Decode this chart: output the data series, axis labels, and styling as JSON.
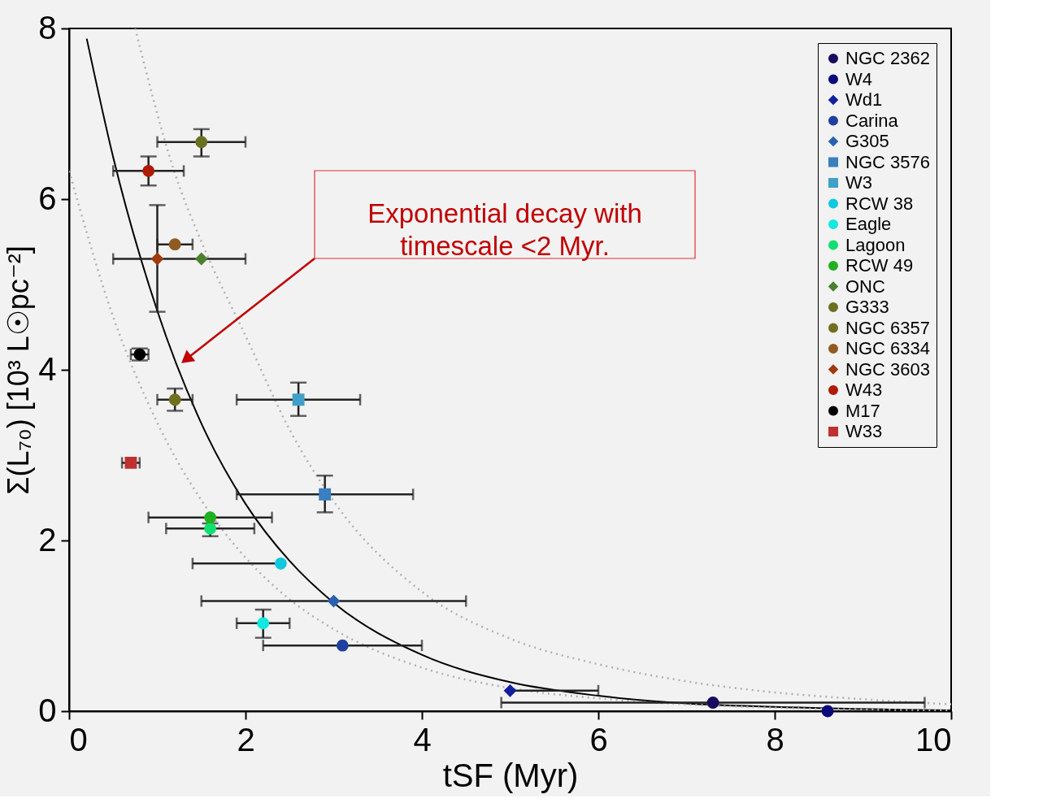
{
  "chart_data": {
    "type": "scatter",
    "xlabel": "tSF (Myr)",
    "ylabel": "Σ(L₇₀) [10³ L☉pc⁻²]",
    "xlim": [
      0,
      10
    ],
    "xticks": [
      0,
      2,
      4,
      6,
      8,
      10
    ],
    "ylim": [
      0,
      8
    ],
    "yticks": [
      0,
      2,
      4,
      6,
      8
    ],
    "grid": false,
    "legend": "top right",
    "annotations": [
      "Exponential decay with\ntimescale <2 Myr."
    ],
    "series": [
      {
        "name": "NGC 2362",
        "color": "#1a0a5e",
        "marker": "circle",
        "x": [
          7.3
        ],
        "values": [
          0.1
        ],
        "xerrors": [
          [
            4.9,
            9.7
          ]
        ],
        "errors": [
          null
        ]
      },
      {
        "name": "W4",
        "color": "#0a0a7a",
        "marker": "circle",
        "x": [
          8.6
        ],
        "values": [
          0.0
        ],
        "xerrors": [
          null
        ],
        "errors": [
          null
        ]
      },
      {
        "name": "Wd1",
        "color": "#1020a0",
        "marker": "diamond",
        "x": [
          5.0
        ],
        "values": [
          0.24
        ],
        "xerrors": [
          [
            5.0,
            6.0
          ]
        ],
        "errors": [
          null
        ]
      },
      {
        "name": "Carina",
        "color": "#2040a0",
        "marker": "circle",
        "x": [
          3.1
        ],
        "values": [
          0.77
        ],
        "xerrors": [
          [
            2.2,
            4.0
          ]
        ],
        "errors": [
          null
        ]
      },
      {
        "name": "G305",
        "color": "#2a60b0",
        "marker": "diamond",
        "x": [
          3.0
        ],
        "values": [
          1.29
        ],
        "xerrors": [
          [
            1.5,
            4.5
          ]
        ],
        "errors": [
          null
        ]
      },
      {
        "name": "NGC 3576",
        "color": "#3a80c0",
        "marker": "square",
        "x": [
          2.9
        ],
        "values": [
          2.54
        ],
        "xerrors": [
          [
            1.9,
            3.9
          ]
        ],
        "errors": [
          [
            2.33,
            2.76
          ]
        ]
      },
      {
        "name": "W3",
        "color": "#40a0c8",
        "marker": "square",
        "x": [
          2.6
        ],
        "values": [
          3.65
        ],
        "xerrors": [
          [
            1.9,
            3.3
          ]
        ],
        "errors": [
          [
            3.46,
            3.85
          ]
        ]
      },
      {
        "name": "RCW 38",
        "color": "#10c8e0",
        "marker": "circle",
        "x": [
          2.4
        ],
        "values": [
          1.73
        ],
        "xerrors": [
          [
            1.4,
            2.4
          ]
        ],
        "errors": [
          null
        ]
      },
      {
        "name": "Eagle",
        "color": "#10e8e0",
        "marker": "circle",
        "x": [
          2.2
        ],
        "values": [
          1.03
        ],
        "xerrors": [
          [
            1.9,
            2.5
          ]
        ],
        "errors": [
          [
            0.86,
            1.19
          ]
        ]
      },
      {
        "name": "Lagoon",
        "color": "#10e070",
        "marker": "circle",
        "x": [
          1.6
        ],
        "values": [
          2.14
        ],
        "xerrors": [
          [
            1.1,
            2.1
          ]
        ],
        "errors": [
          [
            2.05,
            2.2
          ]
        ]
      },
      {
        "name": "RCW 49",
        "color": "#20b020",
        "marker": "circle",
        "x": [
          1.6
        ],
        "values": [
          2.27
        ],
        "xerrors": [
          [
            0.9,
            2.3
          ]
        ],
        "errors": [
          null
        ]
      },
      {
        "name": "ONC",
        "color": "#4a8030",
        "marker": "diamond",
        "x": [
          1.5
        ],
        "values": [
          5.3
        ],
        "xerrors": [
          null
        ],
        "errors": [
          null
        ]
      },
      {
        "name": "G333",
        "color": "#6a7020",
        "marker": "circle",
        "x": [
          1.5
        ],
        "values": [
          6.67
        ],
        "xerrors": [
          [
            1.0,
            2.0
          ]
        ],
        "errors": [
          [
            6.5,
            6.82
          ]
        ]
      },
      {
        "name": "NGC 6357",
        "color": "#707020",
        "marker": "circle",
        "x": [
          1.2
        ],
        "values": [
          3.65
        ],
        "xerrors": [
          [
            1.0,
            1.4
          ]
        ],
        "errors": [
          [
            3.52,
            3.78
          ]
        ]
      },
      {
        "name": "NGC 6334",
        "color": "#905a20",
        "marker": "circle",
        "x": [
          1.2
        ],
        "values": [
          5.47
        ],
        "xerrors": [
          [
            1.0,
            1.4
          ]
        ],
        "errors": [
          null
        ]
      },
      {
        "name": "NGC 3603",
        "color": "#a03a10",
        "marker": "diamond",
        "x": [
          1.0
        ],
        "values": [
          5.3
        ],
        "xerrors": [
          [
            0.5,
            2.0
          ]
        ],
        "errors": [
          [
            4.68,
            5.93
          ]
        ]
      },
      {
        "name": "W43",
        "color": "#b01a00",
        "marker": "circle",
        "x": [
          0.9
        ],
        "values": [
          6.33
        ],
        "xerrors": [
          [
            0.5,
            1.3
          ]
        ],
        "errors": [
          [
            6.16,
            6.5
          ]
        ]
      },
      {
        "name": "M17",
        "color": "#000000",
        "marker": "circle",
        "x": [
          0.8
        ],
        "values": [
          4.18
        ],
        "xerrors": [
          0.1
        ],
        "errors": [
          0.07
        ]
      },
      {
        "name": "W33",
        "color": "#c03030",
        "marker": "square",
        "x": [
          0.7
        ],
        "values": [
          2.91
        ],
        "xerrors": [
          0.1
        ],
        "errors": [
          null
        ]
      },
      {
        "type": "line",
        "color": "#000000",
        "line_style": "solid",
        "x": [
          0.2,
          0.5,
          1,
          1.5,
          2,
          2.5,
          3,
          4,
          5,
          6,
          7,
          8,
          10
        ],
        "values": [
          7.88,
          6.49,
          4.69,
          3.37,
          2.43,
          1.76,
          1.27,
          0.66,
          0.34,
          0.18,
          0.09,
          0.05,
          0.01
        ]
      },
      {
        "type": "line",
        "color": "#b0b0b0",
        "line_style": "dotted",
        "x": [
          0,
          0.5,
          1,
          1.5,
          2,
          2.5,
          3,
          4,
          5,
          6,
          7,
          8,
          10
        ],
        "values": [
          6.33,
          4.62,
          3.38,
          2.47,
          1.8,
          1.31,
          0.96,
          0.51,
          0.27,
          0.15,
          0.08,
          0.04,
          0.01
        ]
      },
      {
        "type": "line",
        "color": "#b0b0b0",
        "line_style": "dotted",
        "x": [
          0.75,
          1.2,
          1.5,
          2,
          2.5,
          3,
          4,
          5,
          6,
          7,
          8,
          9,
          10
        ],
        "values": [
          8.0,
          6.3,
          5.5,
          4.4,
          3.3,
          2.46,
          1.4,
          0.85,
          0.55,
          0.35,
          0.22,
          0.14,
          0.08
        ]
      }
    ]
  }
}
